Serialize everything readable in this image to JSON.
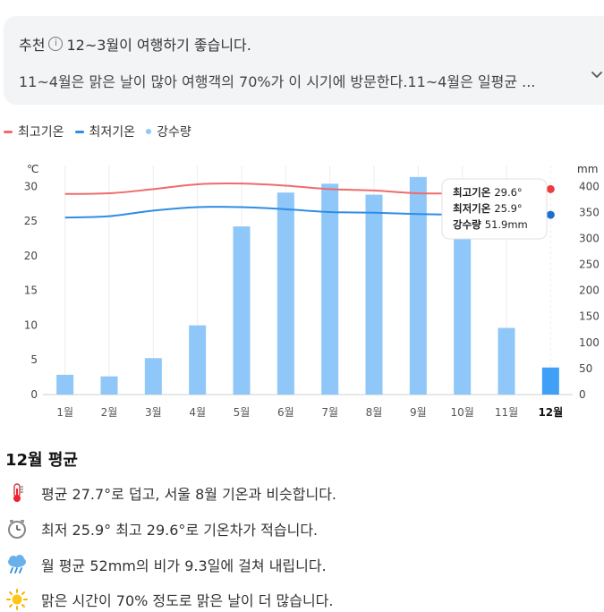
{
  "recommendation": {
    "label": "추천",
    "headline": "12~3월이 여행하기 좋습니다.",
    "body": "11~4월은 맑은 날이 많아 여행객의 70%가 이 시기에 방문한다.11~4월은 일평균 ...",
    "expand_icon": "chevron-down-icon"
  },
  "legend": [
    {
      "label": "최고기온",
      "color": "#ef6b6b"
    },
    {
      "label": "최저기온",
      "color": "#2f8de4"
    },
    {
      "label": "강수량",
      "color": "#8ec7f8"
    }
  ],
  "chart_data": {
    "type": "bar",
    "categories": [
      "1월",
      "2월",
      "3월",
      "4월",
      "5월",
      "6월",
      "7월",
      "8월",
      "9월",
      "10월",
      "11월",
      "12월"
    ],
    "selected_category": "12월",
    "y_left": {
      "unit": "℃",
      "ticks": [
        0,
        5,
        10,
        15,
        20,
        25,
        30
      ],
      "ylim": [
        0,
        33
      ]
    },
    "y_right": {
      "unit": "mm",
      "ticks": [
        0,
        50,
        100,
        150,
        200,
        250,
        300,
        350,
        400
      ],
      "ylim": [
        0,
        440
      ]
    },
    "series": [
      {
        "name": "강수량",
        "type": "bar",
        "axis": "right",
        "color": "#8ec7f8",
        "selected_color": "#3fa0f5",
        "values": [
          38,
          35,
          70,
          133,
          323,
          388,
          405,
          384,
          418,
          342,
          128,
          52
        ]
      },
      {
        "name": "최고기온",
        "type": "line",
        "axis": "left",
        "color": "#ef6b6b",
        "values": [
          28.9,
          29.0,
          29.6,
          30.3,
          30.4,
          30.1,
          29.6,
          29.4,
          29.0,
          29.0,
          29.1,
          29.6
        ]
      },
      {
        "name": "최저기온",
        "type": "line",
        "axis": "left",
        "color": "#2f8de4",
        "values": [
          25.5,
          25.7,
          26.5,
          27.0,
          27.0,
          26.7,
          26.3,
          26.2,
          26.0,
          25.9,
          25.8,
          25.9
        ]
      }
    ],
    "tooltip": [
      {
        "label": "최고기온",
        "value": "29.6°"
      },
      {
        "label": "최저기온",
        "value": "25.9°"
      },
      {
        "label": "강수량",
        "value": "51.9mm"
      }
    ],
    "grid": "vertical",
    "legend_position": "top-left"
  },
  "summary": {
    "title": "12월 평균",
    "items": [
      {
        "icon": "thermometer-icon",
        "text": "평균 27.7°로 덥고, 서울 8월 기온과 비슷합니다."
      },
      {
        "icon": "clock-icon",
        "text": "최저 25.9° 최고 29.6°로 기온차가 적습니다."
      },
      {
        "icon": "rain-cloud-icon",
        "text": "월 평균 52mm의 비가 9.3일에 걸쳐 내립니다."
      },
      {
        "icon": "sun-icon",
        "text": "맑은 시간이 70% 정도로 맑은 날이 더 많습니다."
      }
    ]
  }
}
